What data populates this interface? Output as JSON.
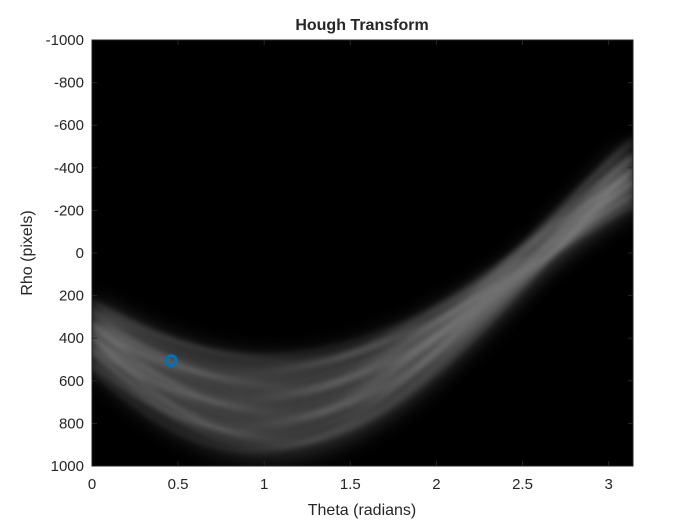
{
  "chart_data": {
    "type": "heatmap",
    "title": "Hough Transform",
    "xlabel": "Theta (radians)",
    "ylabel": "Rho (pixels)",
    "xlim": [
      0,
      3.1416
    ],
    "ylim": [
      -1000,
      1000
    ],
    "y_axis_direction": "reversed",
    "x_ticks": [
      "0",
      "0.5",
      "1",
      "1.5",
      "2",
      "2.5",
      "3"
    ],
    "y_ticks": [
      "-1000",
      "-800",
      "-600",
      "-400",
      "-200",
      "0",
      "200",
      "400",
      "600",
      "800",
      "1000"
    ],
    "colormap": "gray",
    "background_color": "#000000",
    "grid": false,
    "series": [
      {
        "type": "scatter",
        "marker": "circle",
        "color": "#0072BD",
        "points": [
          {
            "x": 0.46,
            "y": 505
          }
        ]
      }
    ]
  }
}
